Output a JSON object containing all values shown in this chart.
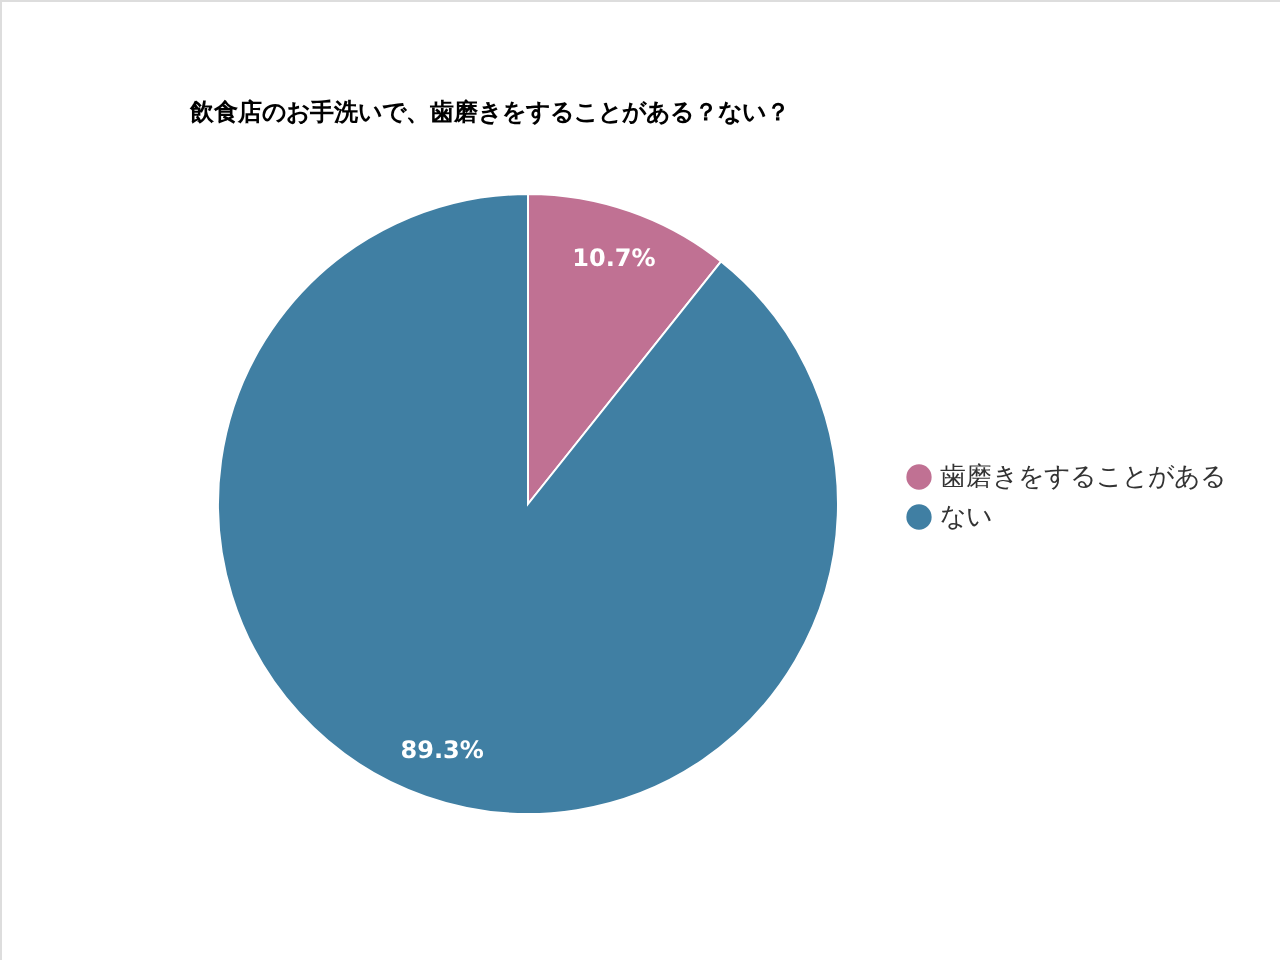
{
  "chart_data": {
    "type": "pie",
    "title": "飲食店のお手洗いで、歯磨きをすることがある？ない？",
    "categories": [
      "歯磨きをすることがある",
      "ない"
    ],
    "values": [
      10.7,
      89.3
    ],
    "colors": [
      "#c07193",
      "#407fa3"
    ],
    "value_labels": [
      "10.7%",
      "89.3%"
    ],
    "legend": "right"
  }
}
